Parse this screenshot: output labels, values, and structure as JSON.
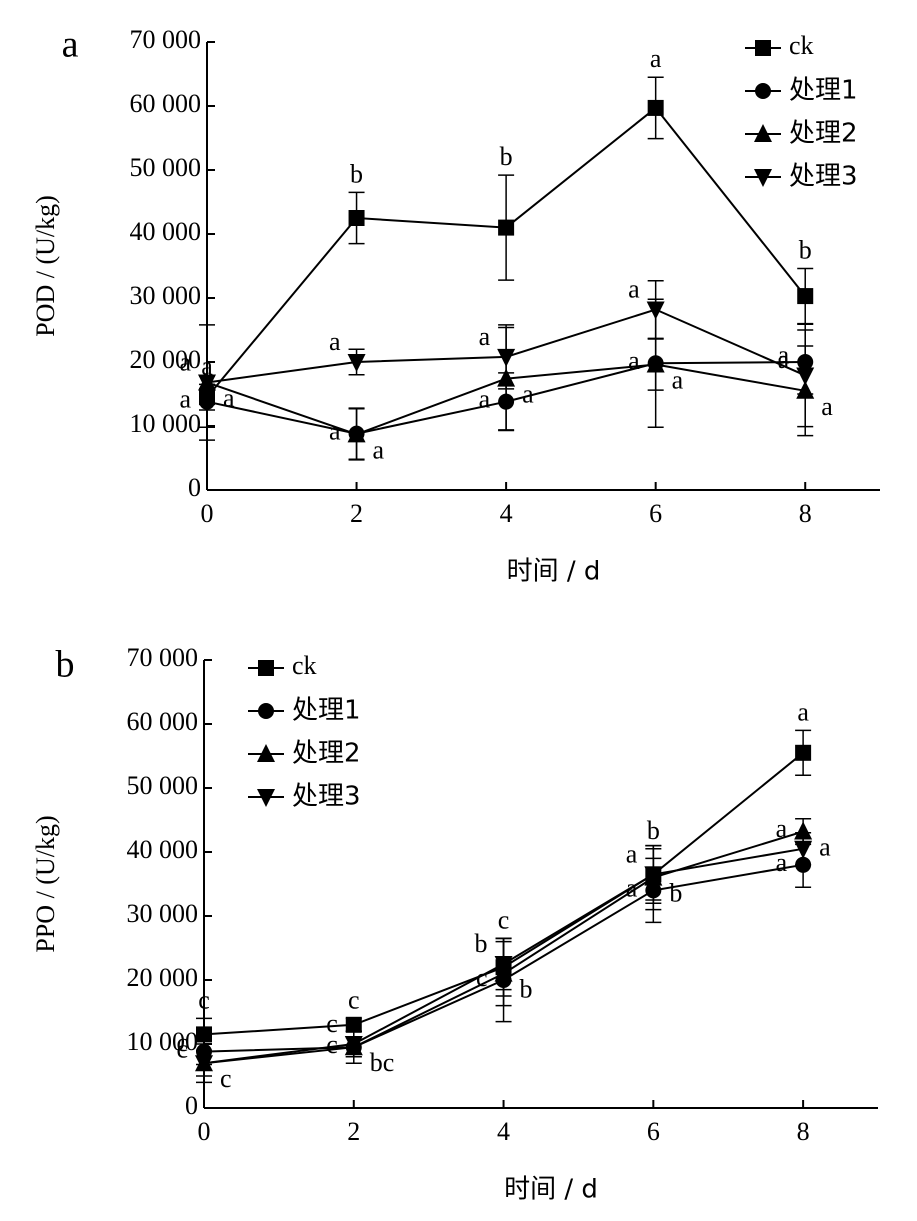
{
  "chart_data": [
    {
      "type": "line",
      "panel_label": "a",
      "xlabel": "时间 / d",
      "ylabel": "POD / (U/kg)",
      "x": [
        0,
        2,
        4,
        6,
        8
      ],
      "xlim": [
        0,
        9
      ],
      "xticks": [
        0,
        2,
        4,
        6,
        8
      ],
      "ylim": [
        0,
        70000
      ],
      "yticks": [
        0,
        {
          "value": 10000,
          "label": "10 000"
        },
        {
          "value": 20000,
          "label": "20 000"
        },
        {
          "value": 30000,
          "label": "30 000"
        },
        {
          "value": 40000,
          "label": "40 000"
        },
        {
          "value": 50000,
          "label": "50 000"
        },
        {
          "value": 60000,
          "label": "60 000"
        },
        {
          "value": 70000,
          "label": "70 000"
        }
      ],
      "legend": "upper right",
      "series": [
        {
          "name": "ck",
          "color": "#000000",
          "marker": "square",
          "values": [
            14500,
            42500,
            41000,
            59700,
            30300
          ],
          "errors": [
            2000,
            4000,
            8200,
            4800,
            4300
          ],
          "letters": [
            "a",
            "b",
            "b",
            "a",
            "b"
          ]
        },
        {
          "name": "处理1",
          "color": "#000000",
          "marker": "circle",
          "values": [
            13800,
            8800,
            13800,
            19800,
            20000
          ],
          "errors": [
            4000,
            4000,
            4500,
            10000,
            5000
          ],
          "letters": [
            "a",
            "a",
            "a",
            "a",
            "a"
          ]
        },
        {
          "name": "处理2",
          "color": "#000000",
          "marker": "triangle-up",
          "values": [
            16800,
            8700,
            17400,
            19600,
            15500
          ],
          "errors": [
            1000,
            4000,
            8000,
            4000,
            7000
          ],
          "letters": [
            "a",
            "a",
            "a",
            "a",
            "a"
          ]
        },
        {
          "name": "处理3",
          "color": "#000000",
          "marker": "triangle-down",
          "values": [
            16800,
            20000,
            20800,
            28200,
            17900
          ],
          "errors": [
            9000,
            2000,
            5000,
            4500,
            8000
          ],
          "letters": [
            "a",
            "a",
            "a",
            "a",
            "a"
          ]
        }
      ]
    },
    {
      "type": "line",
      "panel_label": "b",
      "xlabel": "时间 / d",
      "ylabel": "PPO / (U/kg)",
      "x": [
        0,
        2,
        4,
        6,
        8
      ],
      "xlim": [
        0,
        9
      ],
      "xticks": [
        0,
        2,
        4,
        6,
        8
      ],
      "ylim": [
        0,
        70000
      ],
      "yticks": [
        0,
        {
          "value": 10000,
          "label": "10 000"
        },
        {
          "value": 20000,
          "label": "20 000"
        },
        {
          "value": 30000,
          "label": "30 000"
        },
        {
          "value": 40000,
          "label": "40 000"
        },
        {
          "value": 50000,
          "label": "50 000"
        },
        {
          "value": 60000,
          "label": "60 000"
        },
        {
          "value": 70000,
          "label": "70 000"
        }
      ],
      "legend": "upper left",
      "series": [
        {
          "name": "ck",
          "color": "#000000",
          "marker": "square",
          "values": [
            11500,
            13000,
            22000,
            36500,
            55500
          ],
          "errors": [
            2500,
            1000,
            4500,
            4000,
            3500
          ],
          "letters": [
            "c",
            "c",
            "c",
            "b",
            "a"
          ]
        },
        {
          "name": "处理1",
          "color": "#000000",
          "marker": "circle",
          "values": [
            8800,
            9500,
            20000,
            34000,
            38000
          ],
          "errors": [
            2000,
            1500,
            6500,
            5000,
            3500
          ],
          "letters": [
            "c",
            "c",
            "c",
            "a",
            "a"
          ]
        },
        {
          "name": "处理2",
          "color": "#000000",
          "marker": "triangle-up",
          "values": [
            7000,
            9500,
            21000,
            36000,
            43200
          ],
          "errors": [
            3000,
            2500,
            5000,
            5000,
            2000
          ],
          "letters": [
            "c",
            "bc",
            "b",
            "b",
            "a"
          ]
        },
        {
          "name": "处理3",
          "color": "#000000",
          "marker": "triangle-down",
          "values": [
            7000,
            10000,
            22500,
            36500,
            40500
          ],
          "errors": [
            2000,
            2000,
            4000,
            4500,
            2500
          ],
          "letters": [
            "c",
            "c",
            "b",
            "a",
            "a"
          ]
        }
      ]
    }
  ]
}
